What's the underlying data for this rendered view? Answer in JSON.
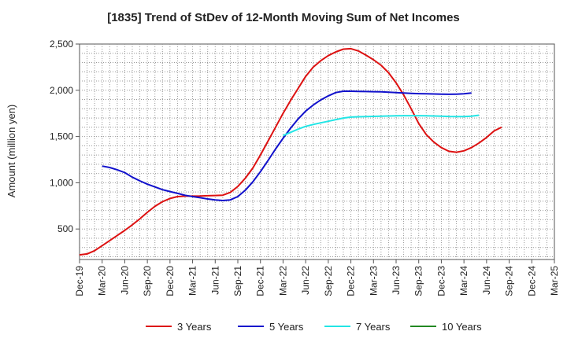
{
  "chart_data": {
    "type": "line",
    "title": "[1835]  Trend of StDev of 12-Month Moving Sum of Net Incomes",
    "xlabel": "",
    "ylabel": "Amount (million yen)",
    "ylim": [
      170,
      2500
    ],
    "yticks": [
      500,
      1000,
      1500,
      2000,
      2500
    ],
    "ytick_labels": [
      "500",
      "1,000",
      "1,500",
      "2,000",
      "2,500"
    ],
    "xticks": [
      "Dec-19",
      "Mar-20",
      "Jun-20",
      "Sep-20",
      "Dec-20",
      "Mar-21",
      "Jun-21",
      "Sep-21",
      "Dec-21",
      "Mar-22",
      "Jun-22",
      "Sep-22",
      "Dec-22",
      "Mar-23",
      "Jun-23",
      "Sep-23",
      "Dec-23",
      "Mar-24",
      "Jun-24",
      "Sep-24",
      "Dec-24",
      "Mar-25"
    ],
    "grid": true,
    "legend_position": "bottom",
    "series": [
      {
        "name": "3 Years",
        "color": "#dd1111",
        "start_index": 0,
        "values": [
          220,
          230,
          265,
          320,
          375,
          430,
          485,
          545,
          610,
          680,
          745,
          795,
          830,
          850,
          855,
          855,
          856,
          860,
          862,
          866,
          895,
          960,
          1050,
          1160,
          1300,
          1450,
          1600,
          1750,
          1890,
          2020,
          2150,
          2250,
          2320,
          2375,
          2415,
          2445,
          2450,
          2425,
          2380,
          2330,
          2270,
          2190,
          2080,
          1950,
          1800,
          1640,
          1520,
          1440,
          1380,
          1340,
          1330,
          1345,
          1380,
          1430,
          1490,
          1560,
          1600
        ]
      },
      {
        "name": "5 Years",
        "color": "#1111cc",
        "start_index": 3,
        "values": [
          1180,
          1165,
          1140,
          1110,
          1060,
          1020,
          985,
          955,
          925,
          905,
          885,
          865,
          850,
          838,
          825,
          815,
          808,
          815,
          850,
          920,
          1010,
          1120,
          1240,
          1365,
          1480,
          1590,
          1690,
          1775,
          1840,
          1895,
          1940,
          1975,
          1990,
          1990,
          1987,
          1986,
          1985,
          1983,
          1980,
          1975,
          1970,
          1966,
          1963,
          1962,
          1960,
          1958,
          1957,
          1958,
          1962,
          1970
        ]
      },
      {
        "name": "7 Years",
        "color": "#22e5e5",
        "start_index": 27,
        "values": [
          1510,
          1545,
          1580,
          1610,
          1630,
          1648,
          1665,
          1683,
          1700,
          1710,
          1713,
          1716,
          1718,
          1720,
          1722,
          1724,
          1725,
          1725,
          1725,
          1724,
          1722,
          1720,
          1717,
          1716,
          1716,
          1720,
          1730
        ]
      },
      {
        "name": "10 Years",
        "color": "#228822",
        "start_index": 0,
        "values": []
      }
    ]
  }
}
